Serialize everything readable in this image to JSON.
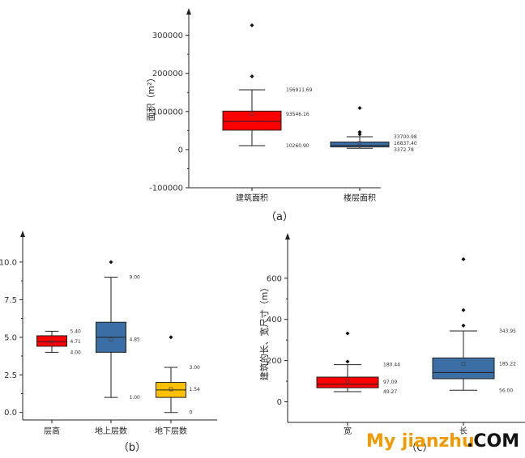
{
  "chart_data": [
    {
      "id": "a",
      "type": "box",
      "panel_label": "（a）",
      "ylabel": "面积（m²）",
      "ylim": [
        -100000,
        350000
      ],
      "yticks": [
        -100000,
        0,
        100000,
        200000,
        300000
      ],
      "ytick_labels": [
        "-100000",
        "0",
        "100000",
        "200000",
        "300000"
      ],
      "categories": [
        "建筑面积",
        "楼层面积"
      ],
      "boxes": [
        {
          "label": "建筑面积",
          "color": "#ff0000",
          "whisker_low": 10260.9,
          "q1": 51000,
          "median": 74000,
          "q3": 101000,
          "whisker_high": 156911.69,
          "mean": 93546.16,
          "outliers": [
            192000,
            326000
          ],
          "annotations": [
            "156911.69",
            "93546.16",
            "10260.90"
          ]
        },
        {
          "label": "楼层面积",
          "color": "#3a6ea5",
          "whisker_low": 3372.78,
          "q1": 7000,
          "median": 11000,
          "q3": 20000,
          "whisker_high": 33700.98,
          "mean": 16837.4,
          "outliers": [
            40000,
            46000,
            109000
          ],
          "annotations": [
            "33700.98",
            "16837.40",
            "3372.78"
          ]
        }
      ]
    },
    {
      "id": "b",
      "type": "box",
      "panel_label": "（b）",
      "ylabel": "",
      "ylim": [
        -0.5,
        11.5
      ],
      "yticks": [
        0,
        2.5,
        5,
        7.5,
        10
      ],
      "ytick_labels": [
        "0.0",
        "2.5",
        "5.0",
        "7.5",
        "10.0"
      ],
      "categories": [
        "层高",
        "地上层数",
        "地下层数"
      ],
      "boxes": [
        {
          "label": "层高",
          "color": "#ff0000",
          "whisker_low": 4.0,
          "q1": 4.4,
          "median": 4.7,
          "q3": 5.1,
          "whisker_high": 5.4,
          "mean": 4.71,
          "outliers": [],
          "annotations": [
            "5.40",
            "4.71",
            "4.00"
          ]
        },
        {
          "label": "地上层数",
          "color": "#3a6ea5",
          "whisker_low": 1.0,
          "q1": 4.0,
          "median": 5.0,
          "q3": 6.0,
          "whisker_high": 9.0,
          "mean": 4.85,
          "outliers": [
            10
          ],
          "annotations": [
            "9.00",
            "4.85",
            "1.00"
          ]
        },
        {
          "label": "地下层数",
          "color": "#ffc000",
          "whisker_low": 0,
          "q1": 1.0,
          "median": 1.5,
          "q3": 2.0,
          "whisker_high": 3.0,
          "mean": 1.54,
          "outliers": [
            5
          ],
          "annotations": [
            "3.00",
            "1.54",
            "0"
          ]
        }
      ]
    },
    {
      "id": "c",
      "type": "box",
      "panel_label": "（c）",
      "ylabel": "建筑的长、宽尺寸（m）",
      "ylim": [
        -100,
        780
      ],
      "yticks": [
        0,
        200,
        400,
        600
      ],
      "ytick_labels": [
        "0",
        "200",
        "400",
        "600"
      ],
      "categories": [
        "宽",
        "长"
      ],
      "boxes": [
        {
          "label": "宽",
          "color": "#ff0000",
          "whisker_low": 49.27,
          "q1": 68,
          "median": 85,
          "q3": 120,
          "whisker_high": 180.44,
          "mean": 97.09,
          "outliers": [
            195,
            332
          ],
          "annotations": [
            "180.44",
            "97.09",
            "49.27"
          ]
        },
        {
          "label": "长",
          "color": "#3a6ea5",
          "whisker_low": 56.0,
          "q1": 112,
          "median": 142,
          "q3": 213,
          "whisker_high": 343.95,
          "mean": 185.22,
          "outliers": [
            370,
            445,
            692
          ],
          "annotations": [
            "343.95",
            "185.22",
            "56.00"
          ]
        }
      ]
    }
  ],
  "watermark": {
    "part1": "My jianzhu",
    "part2": ".COM"
  }
}
